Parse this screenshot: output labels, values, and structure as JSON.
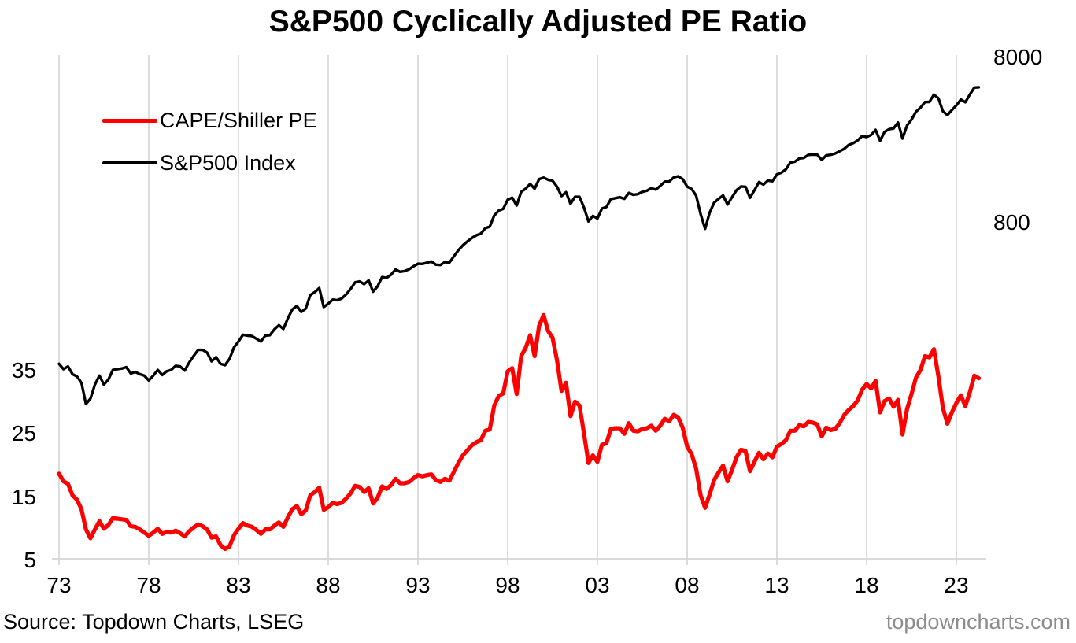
{
  "title": "S&P500 Cyclically Adjusted PE Ratio",
  "footer": {
    "source": "Source: Topdown Charts, LSEG",
    "watermark": "topdowncharts.com"
  },
  "colors": {
    "cape_line": "#fe0000",
    "spx_line": "#000000",
    "grid": "#d9d9d9",
    "axis_line": "#d4d4d4",
    "watermark_text": "#8c8c8c"
  },
  "chart_data": {
    "type": "line",
    "title": "S&P500 Cyclically Adjusted PE Ratio",
    "grid": "vertical-only",
    "legend_position": "top-left-inside",
    "x_start": 1973.0,
    "x_step": 0.25,
    "x_tick_years": [
      1973,
      1978,
      1983,
      1988,
      1993,
      1998,
      2003,
      2008,
      2013,
      2018,
      2023
    ],
    "x_tick_labels": [
      "73",
      "78",
      "83",
      "88",
      "93",
      "98",
      "03",
      "08",
      "13",
      "18",
      "23"
    ],
    "left_axis": {
      "scale": "linear",
      "tick_values": [
        35,
        25,
        15,
        5
      ],
      "labels": [
        "35",
        "25",
        "15",
        "5"
      ]
    },
    "right_axis": {
      "scale": "log",
      "tick_values": [
        8000,
        800
      ],
      "labels": [
        "8000",
        "800"
      ]
    },
    "series": [
      {
        "name": "CAPE/Shiller PE",
        "axis": "left",
        "color": "#fe0000",
        "line_width": 5.2,
        "values": [
          18.7,
          17.5,
          17.1,
          15.3,
          14.6,
          13.1,
          9.9,
          8.5,
          9.9,
          11.2,
          10.0,
          10.6,
          11.7,
          11.6,
          11.5,
          11.4,
          10.4,
          10.3,
          9.9,
          9.4,
          8.9,
          9.4,
          10.0,
          9.2,
          9.5,
          9.4,
          9.7,
          9.3,
          8.8,
          9.6,
          10.2,
          10.7,
          10.4,
          9.9,
          8.6,
          8.8,
          7.4,
          6.8,
          7.2,
          9.0,
          10.0,
          10.9,
          10.5,
          10.3,
          9.8,
          9.2,
          9.9,
          9.9,
          10.5,
          11.0,
          10.3,
          11.8,
          13.1,
          13.6,
          12.3,
          12.9,
          15.3,
          15.8,
          16.5,
          13.0,
          13.4,
          14.1,
          13.9,
          14.1,
          14.8,
          15.6,
          16.8,
          16.6,
          15.8,
          16.4,
          14.0,
          14.9,
          16.7,
          16.3,
          16.9,
          17.9,
          17.2,
          17.2,
          17.4,
          18.0,
          18.5,
          18.3,
          18.5,
          18.6,
          17.7,
          17.4,
          17.9,
          17.6,
          19.0,
          20.4,
          21.6,
          22.4,
          23.2,
          23.7,
          24.0,
          25.5,
          25.7,
          29.5,
          31.0,
          31.4,
          34.9,
          35.4,
          31.3,
          37.3,
          38.6,
          40.6,
          37.3,
          42.1,
          43.8,
          41.3,
          40.2,
          36.6,
          31.8,
          33.1,
          27.8,
          30.1,
          29.5,
          25.1,
          20.4,
          21.6,
          20.6,
          23.3,
          23.5,
          25.8,
          25.9,
          25.9,
          25.0,
          26.7,
          25.5,
          25.4,
          25.8,
          25.9,
          26.3,
          25.5,
          26.3,
          27.4,
          27.0,
          28.0,
          27.6,
          26.0,
          23.0,
          21.8,
          19.5,
          15.3,
          13.3,
          15.4,
          17.7,
          18.9,
          20.0,
          17.5,
          19.3,
          21.3,
          22.5,
          22.3,
          19.1,
          20.6,
          22.0,
          21.0,
          21.9,
          21.3,
          23.0,
          23.4,
          24.0,
          25.5,
          25.5,
          26.4,
          26.2,
          26.9,
          26.8,
          26.5,
          24.6,
          26.0,
          25.6,
          25.8,
          26.7,
          28.0,
          28.8,
          29.4,
          30.3,
          32.0,
          32.9,
          32.2,
          33.4,
          28.4,
          30.2,
          30.6,
          29.3,
          30.4,
          24.9,
          28.9,
          31.3,
          33.9,
          35.1,
          37.3,
          37.1,
          38.4,
          34.1,
          29.1,
          26.6,
          28.4,
          29.9,
          31.1,
          29.4,
          31.6,
          34.2,
          33.8
        ]
      },
      {
        "name": "S&P500 Index",
        "axis": "right",
        "color": "#000000",
        "line_width": 3.4,
        "values": [
          112,
          104,
          108,
          97,
          94,
          86,
          64,
          69,
          84,
          95,
          84,
          90,
          103,
          104,
          105,
          107,
          98,
          100,
          97,
          95,
          89,
          95,
          103,
          96,
          101,
          103,
          109,
          108,
          102,
          114,
          125,
          136,
          136,
          131,
          116,
          123,
          112,
          110,
          120,
          141,
          153,
          168,
          166,
          165,
          159,
          153,
          166,
          167,
          181,
          192,
          182,
          211,
          239,
          251,
          231,
          242,
          292,
          304,
          322,
          247,
          259,
          274,
          272,
          278,
          295,
          318,
          349,
          353,
          340,
          358,
          306,
          330,
          375,
          371,
          388,
          417,
          404,
          408,
          418,
          436,
          452,
          451,
          459,
          466,
          446,
          444,
          463,
          459,
          501,
          545,
          584,
          616,
          646,
          671,
          687,
          741,
          757,
          885,
          947,
          970,
          1102,
          1134,
          1017,
          1229,
          1286,
          1373,
          1283,
          1469,
          1499,
          1455,
          1437,
          1320,
          1160,
          1224,
          1041,
          1148,
          1147,
          990,
          815,
          880,
          848,
          975,
          996,
          1112,
          1126,
          1141,
          1115,
          1212,
          1181,
          1191,
          1229,
          1248,
          1295,
          1270,
          1336,
          1418,
          1421,
          1503,
          1527,
          1468,
          1323,
          1280,
          1166,
          903,
          735,
          919,
          1057,
          1115,
          1169,
          1031,
          1141,
          1258,
          1326,
          1321,
          1131,
          1258,
          1408,
          1362,
          1441,
          1426,
          1569,
          1606,
          1682,
          1848,
          1872,
          1960,
          1972,
          2059,
          2068,
          2063,
          1920,
          2044,
          2060,
          2099,
          2168,
          2239,
          2363,
          2423,
          2519,
          2674,
          2641,
          2718,
          2914,
          2507,
          2834,
          2942,
          2977,
          3231,
          2585,
          3100,
          3363,
          3756,
          3973,
          4298,
          4308,
          4766,
          4530,
          3785,
          3586,
          3840,
          4109,
          4450,
          4288,
          4770,
          5254,
          5280
        ]
      }
    ]
  }
}
